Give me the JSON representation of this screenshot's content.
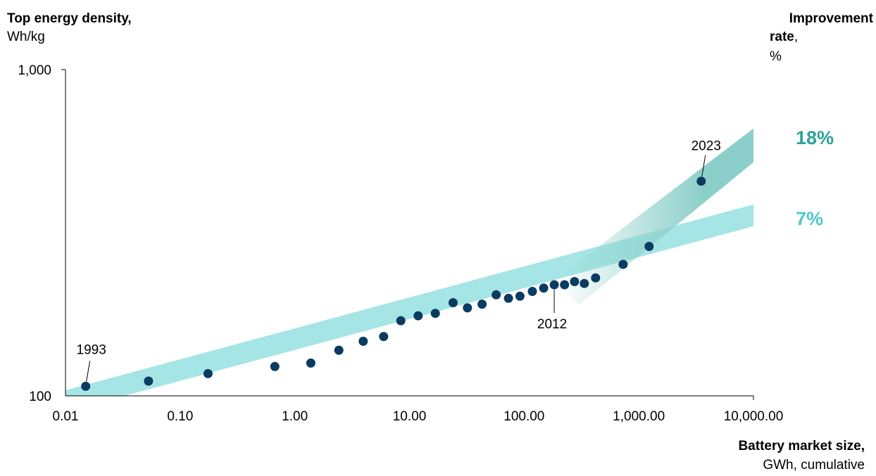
{
  "chart_data": {
    "type": "scatter",
    "title": "",
    "ylabel_title": "Top energy density,",
    "ylabel_unit": "Wh/kg",
    "xlabel_title": "Battery market size,",
    "xlabel_unit": "GWh, cumulative",
    "xscale": "log",
    "yscale": "log",
    "xlim": [
      0.01,
      10000
    ],
    "ylim": [
      100,
      1000
    ],
    "xticks": [
      0.01,
      0.1,
      1,
      10,
      100,
      1000,
      10000
    ],
    "xtick_labels": [
      "0.01",
      "0.10",
      "1.00",
      "10.00",
      "100.00",
      "1,000.00",
      "10,000.00"
    ],
    "yticks": [
      100,
      1000
    ],
    "ytick_labels": [
      "100",
      "1,000"
    ],
    "right_title_line1": "Improvement",
    "right_title_line2_bold": "rate",
    "right_title_line2_rest": ",",
    "right_unit": "%",
    "rate_bands": [
      {
        "label": "7%",
        "color": "#a5e5e5",
        "lower": [
          [
            0.01,
            89.4
          ],
          [
            10000,
            331
          ]
        ],
        "upper": [
          [
            0.01,
            104
          ],
          [
            10000,
            386
          ]
        ]
      },
      {
        "label": "18%",
        "color": "#8ccfca",
        "lower": [
          [
            300,
            190
          ],
          [
            10000,
            520
          ]
        ],
        "upper": [
          [
            180,
            225
          ],
          [
            10000,
            660
          ]
        ]
      }
    ],
    "points": [
      {
        "x": 0.015,
        "y": 107
      },
      {
        "x": 0.053,
        "y": 111
      },
      {
        "x": 0.175,
        "y": 117
      },
      {
        "x": 0.67,
        "y": 123
      },
      {
        "x": 1.38,
        "y": 126
      },
      {
        "x": 2.42,
        "y": 138
      },
      {
        "x": 3.95,
        "y": 147
      },
      {
        "x": 5.95,
        "y": 152
      },
      {
        "x": 8.4,
        "y": 170
      },
      {
        "x": 11.9,
        "y": 176
      },
      {
        "x": 16.8,
        "y": 179
      },
      {
        "x": 24.0,
        "y": 193
      },
      {
        "x": 32.0,
        "y": 186
      },
      {
        "x": 43.0,
        "y": 191
      },
      {
        "x": 57.0,
        "y": 204
      },
      {
        "x": 73.0,
        "y": 199
      },
      {
        "x": 92.0,
        "y": 202
      },
      {
        "x": 118.0,
        "y": 209
      },
      {
        "x": 148.0,
        "y": 214
      },
      {
        "x": 183.0,
        "y": 219
      },
      {
        "x": 225.0,
        "y": 219
      },
      {
        "x": 275.0,
        "y": 224
      },
      {
        "x": 335.0,
        "y": 221
      },
      {
        "x": 420.0,
        "y": 230
      },
      {
        "x": 730.0,
        "y": 253
      },
      {
        "x": 1230.0,
        "y": 287
      },
      {
        "x": 3500.0,
        "y": 455
      }
    ],
    "annotations": [
      {
        "text": "1993",
        "x": 0.015,
        "y": 107,
        "label_pos": "above"
      },
      {
        "text": "2012",
        "x": 183.0,
        "y": 219,
        "label_pos": "below"
      },
      {
        "text": "2023",
        "x": 3500.0,
        "y": 455,
        "label_pos": "above"
      }
    ],
    "colors": {
      "point": "#0b3b60",
      "band_low": "#a5e5e5",
      "band_high": "#8ccfca",
      "label_low": "#4cc9c9",
      "label_high": "#2aa39a"
    }
  }
}
